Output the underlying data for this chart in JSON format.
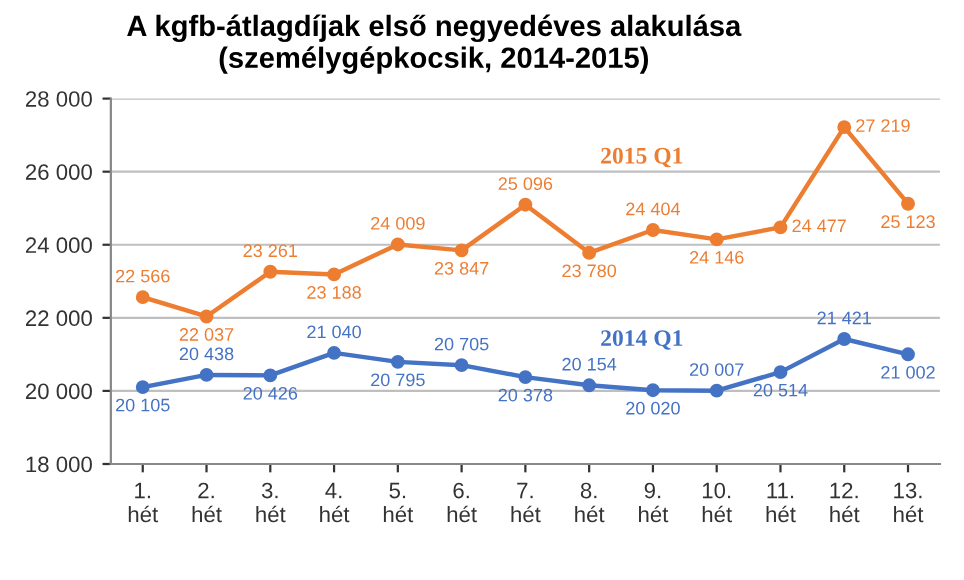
{
  "chart_data": {
    "type": "line",
    "title": "A kgfb-átlagdíjak első negyedéves alakulása\n(személygépkocsik, 2014-2015)",
    "categories": [
      "1.\nhét",
      "2.\nhét",
      "3.\nhét",
      "4.\nhét",
      "5.\nhét",
      "6.\nhét",
      "7.\nhét",
      "8.\nhét",
      "9.\nhét",
      "10.\nhét",
      "11.\nhét",
      "12.\nhét",
      "13.\nhét"
    ],
    "series": [
      {
        "name": "2015 Q1",
        "color": "#ed7d31",
        "values": [
          22566,
          22037,
          23261,
          23188,
          24009,
          23847,
          25096,
          23780,
          24404,
          24146,
          24477,
          27219,
          25123
        ],
        "value_labels": [
          "22 566",
          "22 037",
          "23 261",
          "23 188",
          "24 009",
          "23 847",
          "25 096",
          "23 780",
          "24 404",
          "24 146",
          "24 477",
          "27 219",
          "25 123"
        ]
      },
      {
        "name": "2014 Q1",
        "color": "#4472c4",
        "values": [
          20105,
          20438,
          20426,
          21040,
          20795,
          20705,
          20378,
          20154,
          20020,
          20007,
          20514,
          21421,
          21002
        ],
        "value_labels": [
          "20 105",
          "20 438",
          "20 426",
          "21 040",
          "20 795",
          "20 705",
          "20 378",
          "20 154",
          "20 020",
          "20 007",
          "20 514",
          "21 421",
          "21 002"
        ]
      }
    ],
    "ylim": [
      18000,
      28000
    ],
    "yticks": [
      {
        "value": 18000,
        "label": "18 000"
      },
      {
        "value": 20000,
        "label": "20 000"
      },
      {
        "value": 22000,
        "label": "22 000"
      },
      {
        "value": 24000,
        "label": "24 000"
      },
      {
        "value": 26000,
        "label": "26 000"
      },
      {
        "value": 28000,
        "label": "28 000"
      }
    ],
    "grid": "y",
    "marker": "circle",
    "line_style": "solid",
    "legend": false
  }
}
